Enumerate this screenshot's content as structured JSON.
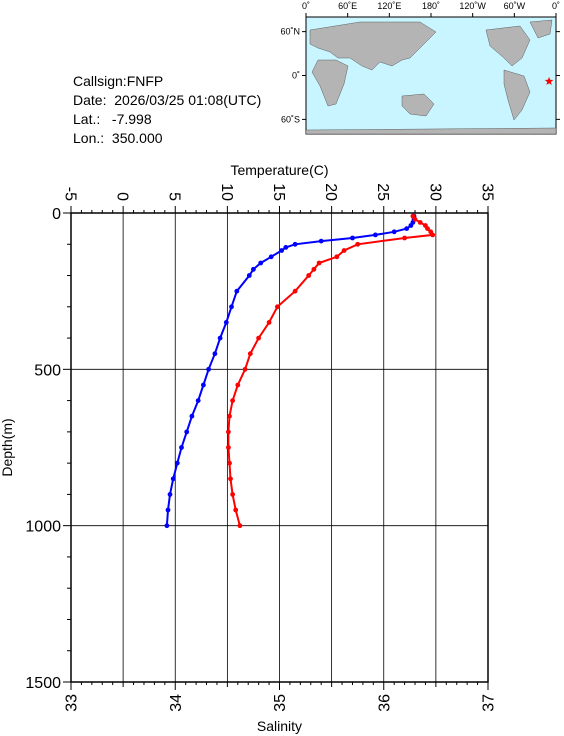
{
  "info": {
    "callsign": "Callsign:FNFP",
    "date": "Date:  2026/03/25 01:08(UTC)",
    "lat": "Lat.:   -7.998",
    "lon": "Lon.:  350.000"
  },
  "map": {
    "lon_ticks": [
      "0˚",
      "60˚E",
      "120˚E",
      "180˚",
      "120˚W",
      "60˚W",
      "0˚"
    ],
    "lat_ticks": [
      "60˚N",
      "0˚",
      "60˚S"
    ],
    "ocean_color": "#c8f5ff",
    "land_color": "#b4b4b4",
    "marker": {
      "lon": 350.0,
      "lat": -7.998,
      "color": "#ff0000",
      "symbol": "star"
    }
  },
  "chart_data": {
    "type": "line",
    "top_axis": {
      "label": "Temperature(C)",
      "range": [
        -5,
        35
      ],
      "ticks": [
        "-5",
        "0",
        "5",
        "10",
        "15",
        "20",
        "25",
        "30",
        "35"
      ]
    },
    "bottom_axis": {
      "label": "Salinity",
      "range": [
        33,
        37
      ],
      "ticks": [
        "33",
        "34",
        "35",
        "36",
        "37"
      ]
    },
    "y_axis": {
      "label": "Depth(m)",
      "range": [
        0,
        1500
      ],
      "inverted": true,
      "ticks": [
        "0",
        "500",
        "1000",
        "1500"
      ]
    },
    "grid": true,
    "series": [
      {
        "variable": "temperature",
        "color": "#0000ff",
        "axis": "top",
        "depth": [
          10,
          20,
          30,
          40,
          50,
          60,
          70,
          80,
          90,
          100,
          110,
          120,
          140,
          160,
          180,
          200,
          250,
          300,
          350,
          400,
          450,
          500,
          550,
          600,
          650,
          700,
          750,
          800,
          850,
          900,
          950,
          1000
        ],
        "values": [
          27.9,
          27.9,
          27.8,
          27.6,
          27.2,
          26.0,
          24.2,
          22.0,
          19.0,
          16.5,
          15.6,
          15.2,
          14.2,
          13.2,
          12.5,
          12.1,
          10.9,
          10.4,
          9.9,
          9.3,
          8.8,
          8.2,
          7.7,
          7.2,
          6.6,
          6.1,
          5.6,
          5.2,
          4.8,
          4.5,
          4.3,
          4.2
        ]
      },
      {
        "variable": "salinity",
        "color": "#ff0000",
        "axis": "bottom",
        "depth": [
          10,
          20,
          30,
          40,
          50,
          60,
          70,
          80,
          100,
          120,
          140,
          160,
          180,
          200,
          250,
          300,
          350,
          400,
          450,
          500,
          550,
          600,
          650,
          700,
          750,
          800,
          850,
          900,
          950,
          1000
        ],
        "values": [
          36.28,
          36.3,
          36.35,
          36.4,
          36.42,
          36.45,
          36.47,
          36.2,
          35.75,
          35.62,
          35.55,
          35.38,
          35.33,
          35.28,
          35.15,
          34.98,
          34.9,
          34.8,
          34.72,
          34.67,
          34.6,
          34.55,
          34.52,
          34.51,
          34.51,
          34.52,
          34.53,
          34.55,
          34.58,
          34.62
        ]
      }
    ]
  }
}
